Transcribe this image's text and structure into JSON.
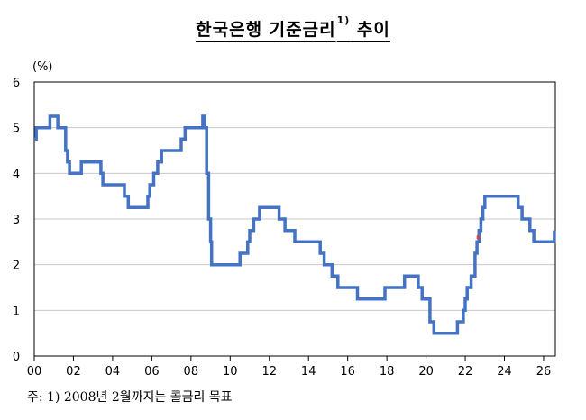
{
  "title": {
    "text": "한국은행 기준금리",
    "footnote_mark": "1)"
  },
  "unit": "(%)",
  "note": "주: 1) 2008년 2월까지는 콜금리 목표",
  "colors": {
    "line": "#4472C4",
    "grid": "#c8c8c8",
    "axis": "#000000",
    "marker": "#e04040"
  },
  "chart_data": {
    "type": "line",
    "title": "한국은행 기준금리1) 추이",
    "xlabel": "",
    "ylabel": "(%)",
    "xlim": [
      2000,
      2026.6
    ],
    "ylim": [
      0,
      6
    ],
    "grid": "horizontal",
    "x_tick_labels": [
      "00",
      "02",
      "04",
      "06",
      "08",
      "10",
      "12",
      "14",
      "16",
      "18",
      "20",
      "22",
      "24",
      "26"
    ],
    "x_tick_values": [
      2000,
      2002,
      2004,
      2006,
      2008,
      2010,
      2012,
      2014,
      2016,
      2018,
      2020,
      2022,
      2024,
      2026
    ],
    "y_tick_labels": [
      "0",
      "1",
      "2",
      "3",
      "4",
      "5",
      "6"
    ],
    "y_tick_values": [
      0,
      1,
      2,
      3,
      4,
      5,
      6
    ],
    "step": "post",
    "series": [
      {
        "x": [
          2000.0,
          2000.1,
          2000.8,
          2001.2,
          2001.6,
          2001.7,
          2001.8,
          2002.4,
          2003.4,
          2003.5,
          2004.6,
          2004.8,
          2005.8,
          2005.9,
          2006.1,
          2006.3,
          2006.5,
          2006.6,
          2007.5,
          2007.7,
          2008.6,
          2008.7,
          2008.8,
          2008.9,
          2009.0,
          2009.05,
          2009.1,
          2010.5,
          2010.9,
          2011.0,
          2011.2,
          2011.5,
          2012.5,
          2012.8,
          2013.3,
          2014.6,
          2014.8,
          2015.2,
          2015.5,
          2016.5,
          2017.9,
          2018.9,
          2019.6,
          2019.8,
          2020.2,
          2020.4,
          2021.6,
          2021.9,
          2022.0,
          2022.1,
          2022.3,
          2022.5,
          2022.6,
          2022.7,
          2022.8,
          2022.9,
          2023.0,
          2024.7,
          2024.9,
          2025.3,
          2025.5,
          2026.55
        ],
        "y": [
          4.75,
          5.0,
          5.25,
          5.0,
          4.5,
          4.25,
          4.0,
          4.25,
          4.0,
          3.75,
          3.5,
          3.25,
          3.5,
          3.75,
          4.0,
          4.25,
          4.5,
          4.5,
          4.75,
          5.0,
          5.25,
          5.0,
          4.0,
          3.0,
          2.5,
          2.0,
          2.0,
          2.25,
          2.5,
          2.75,
          3.0,
          3.25,
          3.0,
          2.75,
          2.5,
          2.25,
          2.0,
          1.75,
          1.5,
          1.25,
          1.5,
          1.75,
          1.5,
          1.25,
          0.75,
          0.5,
          0.75,
          1.0,
          1.25,
          1.5,
          1.75,
          2.25,
          2.5,
          2.75,
          3.0,
          3.25,
          3.5,
          3.25,
          3.0,
          2.75,
          2.5,
          2.75
        ]
      }
    ]
  }
}
